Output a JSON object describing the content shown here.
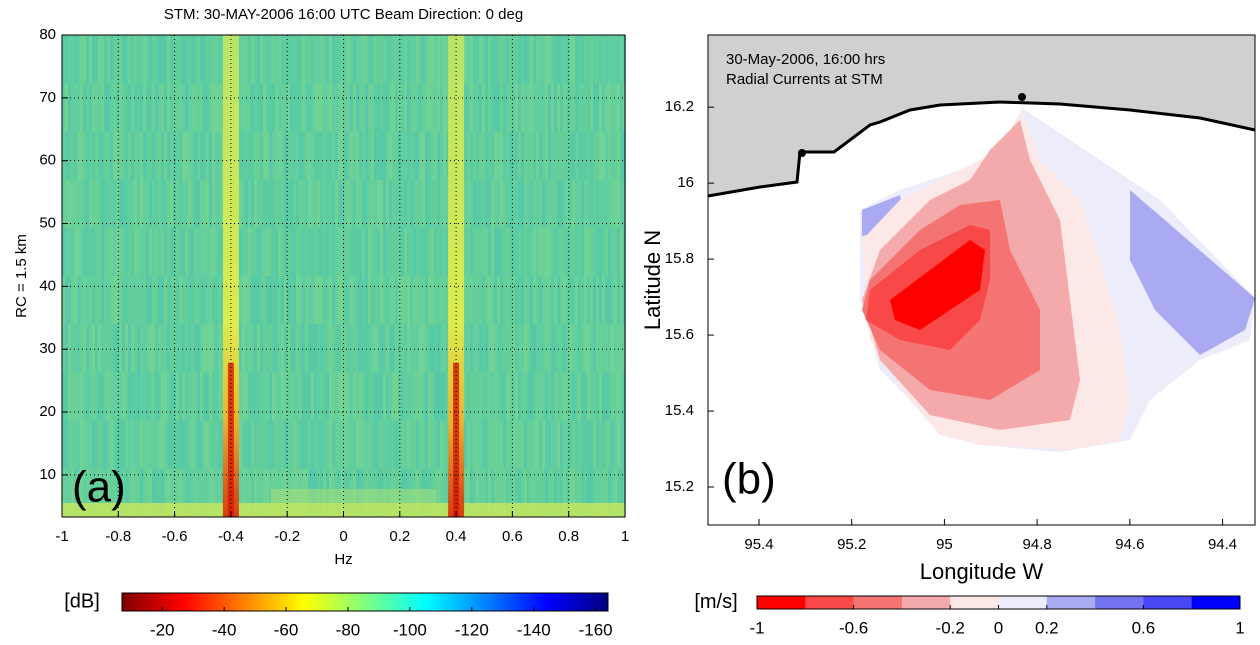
{
  "chart_data": [
    {
      "type": "spectrogram",
      "title": "STM: 30-MAY-2006 16:00 UTC  Beam Direction: 0 deg",
      "xlabel": "Hz",
      "ylabel": "RC = 1.5 km",
      "panel_label": "(a)",
      "xlim": [
        -1,
        1
      ],
      "ylim": [
        3.3,
        80
      ],
      "xticks": [
        -1,
        -0.8,
        -0.6,
        -0.4,
        -0.2,
        0,
        0.2,
        0.4,
        0.6,
        0.8,
        1
      ],
      "yticks": [
        10,
        20,
        30,
        40,
        50,
        60,
        70,
        80
      ],
      "grid": true,
      "peaks": [
        -0.4,
        0.4
      ],
      "colorbar": {
        "label": "[dB]",
        "lim": [
          -7,
          -164
        ],
        "ticks": [
          -20,
          -40,
          -60,
          -80,
          -100,
          -120,
          -140,
          -160
        ],
        "colors": [
          "#800000",
          "#ff0000",
          "#ff8000",
          "#ffff00",
          "#80ff80",
          "#00ffff",
          "#0080ff",
          "#0000ff",
          "#000080"
        ]
      }
    },
    {
      "type": "map",
      "annotation": [
        "30-May-2006, 16:00 hrs",
        "Radial Currents at STM"
      ],
      "xlabel": "Longitude W",
      "ylabel": "Latitude N",
      "panel_label": "(b)",
      "xlim": [
        95.51,
        94.33
      ],
      "ylim": [
        15.1,
        16.39
      ],
      "xticks": [
        95.4,
        95.2,
        95,
        94.8,
        94.6,
        94.4
      ],
      "yticks": [
        15.2,
        15.4,
        15.6,
        15.8,
        16,
        16.2
      ],
      "grid": false,
      "colorbar": {
        "label": "[m/s]",
        "lim": [
          -1,
          1
        ],
        "ticks": [
          -1,
          -0.6,
          -0.2,
          0,
          0.2,
          0.6,
          1
        ],
        "colors": [
          "#ff0000",
          "#f84848",
          "#f47474",
          "#f4aaaa",
          "#fde8e8",
          "#ececfa",
          "#aaaaf2",
          "#7474f0",
          "#4848f4",
          "#0000ff"
        ]
      }
    }
  ]
}
